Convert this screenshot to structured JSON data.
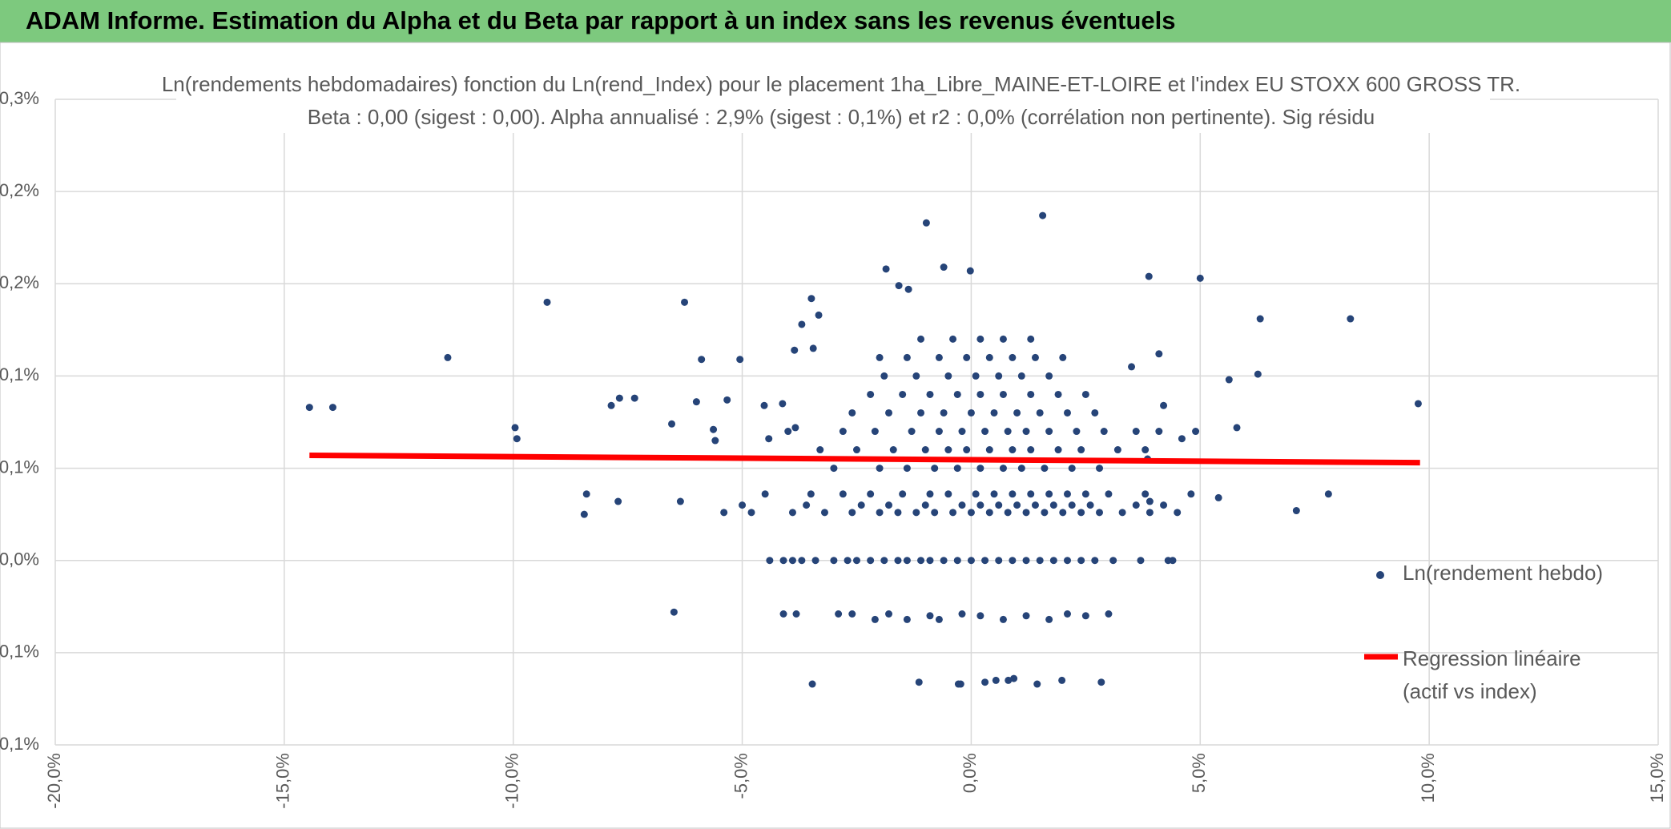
{
  "header": {
    "title": "ADAM Informe. Estimation du Alpha et du Beta par rapport à un index sans les revenus éventuels"
  },
  "chart_data": {
    "type": "scatter",
    "title": "Ln(rendements hebdomadaires) fonction du Ln(rend_Index) pour le placement 1ha_Libre_MAINE-ET-LOIRE et l'index EU STOXX 600 GROSS TR.",
    "subtitle": "Beta : 0,00 (sigest : 0,00). Alpha annualisé : 2,9% (sigest : 0,1%) et r2 : 0,0% (corrélation non pertinente). Sig résidu",
    "xlim": [
      -20,
      15
    ],
    "xticks": [
      {
        "value": -20,
        "label": "-20,0%"
      },
      {
        "value": -15,
        "label": "-15,0%"
      },
      {
        "value": -10,
        "label": "-10,0%"
      },
      {
        "value": -5,
        "label": "-5,0%"
      },
      {
        "value": 0,
        "label": "0,0%"
      },
      {
        "value": 5,
        "label": "5,0%"
      },
      {
        "value": 10,
        "label": "10,0%"
      },
      {
        "value": 15,
        "label": "15,0%"
      }
    ],
    "ylim": [
      -0.1,
      0.25
    ],
    "yticks": [
      {
        "value": -0.1,
        "label": "-0,1%"
      },
      {
        "value": -0.05,
        "label": "-0,1%"
      },
      {
        "value": 0,
        "label": "0,0%"
      },
      {
        "value": 0.05,
        "label": "0,1%"
      },
      {
        "value": 0.1,
        "label": "0,1%"
      },
      {
        "value": 0.15,
        "label": "0,2%"
      },
      {
        "value": 0.2,
        "label": "0,2%"
      },
      {
        "value": 0.25,
        "label": "0,3%"
      }
    ],
    "grid": true,
    "series": [
      {
        "name": "Ln(rendement hebdo)",
        "color": "#264478",
        "type": "scatter",
        "x": [
          -14.45,
          -13.94,
          -11.43,
          -9.26,
          -9.96,
          -9.92,
          -8.4,
          -8.45,
          -7.71,
          -7.86,
          -7.68,
          -7.35,
          -6.49,
          -6.26,
          -6.54,
          -6.35,
          -6,
          -5.89,
          -5.63,
          -5.59,
          -5.05,
          -5.33,
          -4.52,
          -4.42,
          -4.12,
          -3.7,
          -3.49,
          -3.33,
          -3.86,
          -3.45,
          -3.84,
          -3.47,
          -4.1,
          -3.82,
          -1.58,
          -0.98,
          1.56,
          -1.86,
          -1.37,
          -0.6,
          -0.02,
          3.88,
          5,
          5.63,
          6.26,
          6.31,
          8.28,
          9.76,
          7.1,
          7.8,
          5.4,
          4.9,
          4.1,
          3.5,
          4.2,
          3.85,
          4.6,
          5.8,
          3.9,
          -2.9,
          -2.6,
          -2.1,
          -1.8,
          -1.4,
          -0.9,
          -0.7,
          -0.2,
          0.2,
          0.7,
          1.2,
          1.7,
          2.1,
          2.5,
          3,
          -1.14,
          -0.28,
          -0.23,
          0.3,
          0.54,
          0.81,
          0.93,
          1.44,
          1.98,
          2.84,
          -4.4,
          -4.1,
          -3.9,
          -3.7,
          -3.4,
          -3,
          -2.7,
          -2.5,
          -2.2,
          -1.9,
          -1.6,
          -1.4,
          -1.1,
          -0.9,
          -0.6,
          -0.3,
          0,
          0.3,
          0.6,
          0.9,
          1.2,
          1.5,
          1.8,
          2.1,
          2.4,
          2.7,
          3.1,
          3.7,
          4.3,
          4.4,
          -5.4,
          -4.8,
          -3.9,
          -3.2,
          -2.6,
          -2,
          -1.6,
          -1.2,
          -0.8,
          -0.4,
          0,
          0.4,
          0.8,
          1.2,
          1.6,
          2,
          2.4,
          2.8,
          3.3,
          3.9,
          4.5,
          -5,
          -3.6,
          -2.4,
          -1.8,
          -1,
          -0.2,
          0.2,
          0.6,
          1,
          1.4,
          1.8,
          2.2,
          2.6,
          3.6,
          4.2,
          -4.5,
          -3.5,
          -2.8,
          -2.2,
          -1.5,
          -0.9,
          -0.5,
          0.1,
          0.5,
          0.9,
          1.3,
          1.7,
          2.1,
          2.5,
          3,
          3.8,
          4.8,
          -3,
          -2,
          -1.4,
          -0.8,
          -0.3,
          0.2,
          0.7,
          1.1,
          1.6,
          2.2,
          2.8,
          -3.3,
          -2.5,
          -1.7,
          -1,
          -0.5,
          -0.1,
          0.4,
          0.9,
          1.3,
          1.9,
          2.4,
          3.2,
          3.8,
          -4,
          -2.8,
          -2.1,
          -1.3,
          -0.7,
          -0.2,
          0.3,
          0.8,
          1.2,
          1.7,
          2.3,
          2.9,
          3.6,
          4.1,
          -2.6,
          -1.8,
          -1.1,
          -0.6,
          0,
          0.5,
          1,
          1.5,
          2.1,
          2.7,
          -2.2,
          -1.5,
          -0.9,
          -0.3,
          0.2,
          0.7,
          1.3,
          1.9,
          2.5,
          -1.9,
          -1.2,
          -0.5,
          0.1,
          0.6,
          1.1,
          1.7,
          -2,
          -1.4,
          -0.7,
          -0.1,
          0.4,
          0.9,
          1.4,
          2,
          -1.1,
          -0.4,
          0.2,
          0.7,
          1.3
        ],
        "values": [
          0.083,
          0.083,
          0.11,
          0.14,
          0.072,
          0.066,
          0.036,
          0.025,
          0.032,
          0.084,
          0.088,
          0.088,
          -0.028,
          0.14,
          0.074,
          0.032,
          0.086,
          0.109,
          0.071,
          0.065,
          0.109,
          0.087,
          0.084,
          0.066,
          0.085,
          0.128,
          0.142,
          0.133,
          0.114,
          0.115,
          0.072,
          -0.067,
          -0.029,
          -0.029,
          0.149,
          0.183,
          0.187,
          0.158,
          0.147,
          0.159,
          0.157,
          0.154,
          0.153,
          0.098,
          0.101,
          0.131,
          0.131,
          0.085,
          0.027,
          0.036,
          0.034,
          0.07,
          0.112,
          0.105,
          0.084,
          0.055,
          0.066,
          0.072,
          0.032,
          -0.029,
          -0.029,
          -0.032,
          -0.029,
          -0.032,
          -0.03,
          -0.032,
          -0.029,
          -0.03,
          -0.032,
          -0.03,
          -0.032,
          -0.029,
          -0.03,
          -0.029,
          -0.066,
          -0.067,
          -0.067,
          -0.066,
          -0.065,
          -0.065,
          -0.064,
          -0.067,
          -0.065,
          -0.066,
          0,
          0,
          0,
          0,
          0,
          0,
          0,
          0,
          0,
          0,
          0,
          0,
          0,
          0,
          0,
          0,
          0,
          0,
          0,
          0,
          0,
          0,
          0,
          0,
          0,
          0,
          0,
          0,
          0,
          0,
          0.026,
          0.026,
          0.026,
          0.026,
          0.026,
          0.026,
          0.026,
          0.026,
          0.026,
          0.026,
          0.026,
          0.026,
          0.026,
          0.026,
          0.026,
          0.026,
          0.026,
          0.026,
          0.026,
          0.026,
          0.026,
          0.03,
          0.03,
          0.03,
          0.03,
          0.03,
          0.03,
          0.03,
          0.03,
          0.03,
          0.03,
          0.03,
          0.03,
          0.03,
          0.03,
          0.03,
          0.036,
          0.036,
          0.036,
          0.036,
          0.036,
          0.036,
          0.036,
          0.036,
          0.036,
          0.036,
          0.036,
          0.036,
          0.036,
          0.036,
          0.036,
          0.036,
          0.036,
          0.05,
          0.05,
          0.05,
          0.05,
          0.05,
          0.05,
          0.05,
          0.05,
          0.05,
          0.05,
          0.05,
          0.06,
          0.06,
          0.06,
          0.06,
          0.06,
          0.06,
          0.06,
          0.06,
          0.06,
          0.06,
          0.06,
          0.06,
          0.06,
          0.07,
          0.07,
          0.07,
          0.07,
          0.07,
          0.07,
          0.07,
          0.07,
          0.07,
          0.07,
          0.07,
          0.07,
          0.07,
          0.07,
          0.08,
          0.08,
          0.08,
          0.08,
          0.08,
          0.08,
          0.08,
          0.08,
          0.08,
          0.08,
          0.09,
          0.09,
          0.09,
          0.09,
          0.09,
          0.09,
          0.09,
          0.09,
          0.09,
          0.1,
          0.1,
          0.1,
          0.1,
          0.1,
          0.1,
          0.1,
          0.11,
          0.11,
          0.11,
          0.11,
          0.11,
          0.11,
          0.11,
          0.11,
          0.12,
          0.12,
          0.12,
          0.12,
          0.12
        ]
      },
      {
        "name": "Regression linéaire (actif vs index)",
        "color": "#ff0000",
        "type": "line",
        "x": [
          -14.45,
          9.8
        ],
        "values": [
          0.057,
          0.053
        ]
      }
    ]
  }
}
